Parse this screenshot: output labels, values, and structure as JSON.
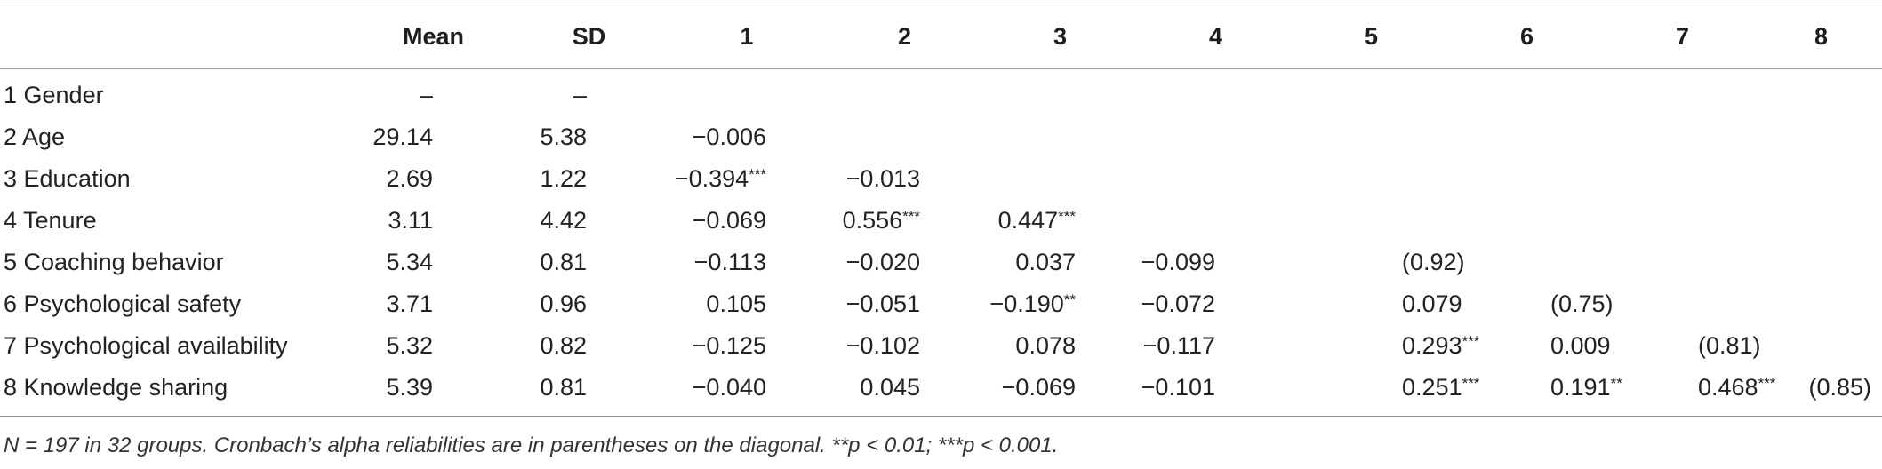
{
  "table": {
    "columns": [
      "",
      "Mean",
      "SD",
      "1",
      "2",
      "3",
      "4",
      "5",
      "6",
      "7",
      "8"
    ],
    "rows": [
      {
        "label": "1 Gender",
        "mean": "–",
        "sd": "–",
        "cells": [
          "",
          "",
          "",
          "",
          "",
          "",
          "",
          ""
        ]
      },
      {
        "label": "2 Age",
        "mean": "29.14",
        "sd": "5.38",
        "cells": [
          "−0.006",
          "",
          "",
          "",
          "",
          "",
          "",
          ""
        ]
      },
      {
        "label": "3 Education",
        "mean": "2.69",
        "sd": "1.22",
        "cells": [
          "−0.394***",
          "−0.013",
          "",
          "",
          "",
          "",
          "",
          ""
        ]
      },
      {
        "label": "4 Tenure",
        "mean": "3.11",
        "sd": "4.42",
        "cells": [
          "−0.069",
          "0.556***",
          "0.447***",
          "",
          "",
          "",
          "",
          ""
        ]
      },
      {
        "label": "5 Coaching behavior",
        "mean": "5.34",
        "sd": "0.81",
        "cells": [
          "−0.113",
          "−0.020",
          "0.037",
          "−0.099",
          "(0.92)",
          "",
          "",
          ""
        ]
      },
      {
        "label": "6 Psychological safety",
        "mean": "3.71",
        "sd": "0.96",
        "cells": [
          "0.105",
          "−0.051",
          "−0.190**",
          "−0.072",
          "0.079",
          "(0.75)",
          "",
          ""
        ]
      },
      {
        "label": "7 Psychological availability",
        "mean": "5.32",
        "sd": "0.82",
        "cells": [
          "−0.125",
          "−0.102",
          "0.078",
          "−0.117",
          "0.293***",
          "0.009",
          "(0.81)",
          ""
        ]
      },
      {
        "label": "8 Knowledge sharing",
        "mean": "5.39",
        "sd": "0.81",
        "cells": [
          "−0.040",
          "0.045",
          "−0.069",
          "−0.101",
          "0.251***",
          "0.191**",
          "0.468***",
          "(0.85)"
        ]
      }
    ]
  },
  "note": "N = 197 in 32 groups. Cronbach’s alpha reliabilities are in parentheses on the diagonal. **p < 0.01; ***p < 0.001."
}
